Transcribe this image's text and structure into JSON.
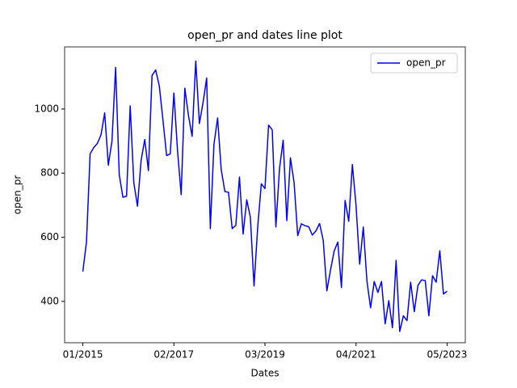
{
  "chart_data": {
    "type": "line",
    "title": "open_pr and dates line plot",
    "x_label": "Dates",
    "y_label": "open_pr",
    "x": [
      "2015-01",
      "2015-02",
      "2015-03",
      "2015-04",
      "2015-05",
      "2015-06",
      "2015-07",
      "2015-08",
      "2015-09",
      "2015-10",
      "2015-11",
      "2015-12",
      "2016-01",
      "2016-02",
      "2016-03",
      "2016-04",
      "2016-05",
      "2016-06",
      "2016-07",
      "2016-08",
      "2016-09",
      "2016-10",
      "2016-11",
      "2016-12",
      "2017-01",
      "2017-02",
      "2017-03",
      "2017-04",
      "2017-05",
      "2017-06",
      "2017-07",
      "2017-08",
      "2017-09",
      "2017-10",
      "2017-11",
      "2017-12",
      "2018-01",
      "2018-02",
      "2018-03",
      "2018-04",
      "2018-05",
      "2018-06",
      "2018-07",
      "2018-08",
      "2018-09",
      "2018-10",
      "2018-11",
      "2018-12",
      "2019-01",
      "2019-02",
      "2019-03",
      "2019-04",
      "2019-05",
      "2019-06",
      "2019-07",
      "2019-08",
      "2019-09",
      "2019-10",
      "2019-11",
      "2019-12",
      "2020-01",
      "2020-02",
      "2020-03",
      "2020-04",
      "2020-05",
      "2020-06",
      "2020-07",
      "2020-08",
      "2020-09",
      "2020-10",
      "2020-11",
      "2020-12",
      "2021-01",
      "2021-02",
      "2021-03",
      "2021-04",
      "2021-05",
      "2021-06",
      "2021-07",
      "2021-08",
      "2021-09",
      "2021-10",
      "2021-11",
      "2021-12",
      "2022-01",
      "2022-02",
      "2022-03",
      "2022-04",
      "2022-05",
      "2022-06",
      "2022-07",
      "2022-08",
      "2022-09",
      "2022-10",
      "2022-11",
      "2022-12",
      "2023-01",
      "2023-02",
      "2023-03",
      "2023-04",
      "2023-05"
    ],
    "series": [
      {
        "name": "open_pr",
        "color": "#0000ff",
        "values": [
          493,
          585,
          860,
          880,
          893,
          920,
          988,
          825,
          900,
          1130,
          795,
          725,
          728,
          1010,
          770,
          697,
          840,
          905,
          808,
          1105,
          1122,
          1072,
          965,
          855,
          860,
          1050,
          870,
          733,
          1065,
          980,
          915,
          1150,
          955,
          1020,
          1097,
          627,
          890,
          972,
          810,
          743,
          740,
          627,
          637,
          788,
          610,
          717,
          662,
          448,
          630,
          767,
          752,
          950,
          935,
          632,
          815,
          903,
          652,
          848,
          770,
          605,
          642,
          636,
          633,
          607,
          620,
          643,
          590,
          433,
          498,
          557,
          585,
          443,
          715,
          650,
          827,
          700,
          516,
          632,
          463,
          380,
          462,
          428,
          462,
          330,
          402,
          318,
          528,
          306,
          355,
          340,
          460,
          368,
          450,
          467,
          465,
          355,
          480,
          460,
          558,
          423,
          432
        ]
      }
    ],
    "xlim": [
      "2014-08",
      "2023-10"
    ],
    "xticks": [
      {
        "value": "2015-01",
        "label": "01/2015"
      },
      {
        "value": "2017-02",
        "label": "02/2017"
      },
      {
        "value": "2019-03",
        "label": "03/2019"
      },
      {
        "value": "2021-04",
        "label": "04/2021"
      },
      {
        "value": "2023-05",
        "label": "05/2023"
      }
    ],
    "ylim": [
      271,
      1194
    ],
    "yticks": [
      400,
      600,
      800,
      1000
    ],
    "grid": false,
    "legend": "upper right"
  }
}
